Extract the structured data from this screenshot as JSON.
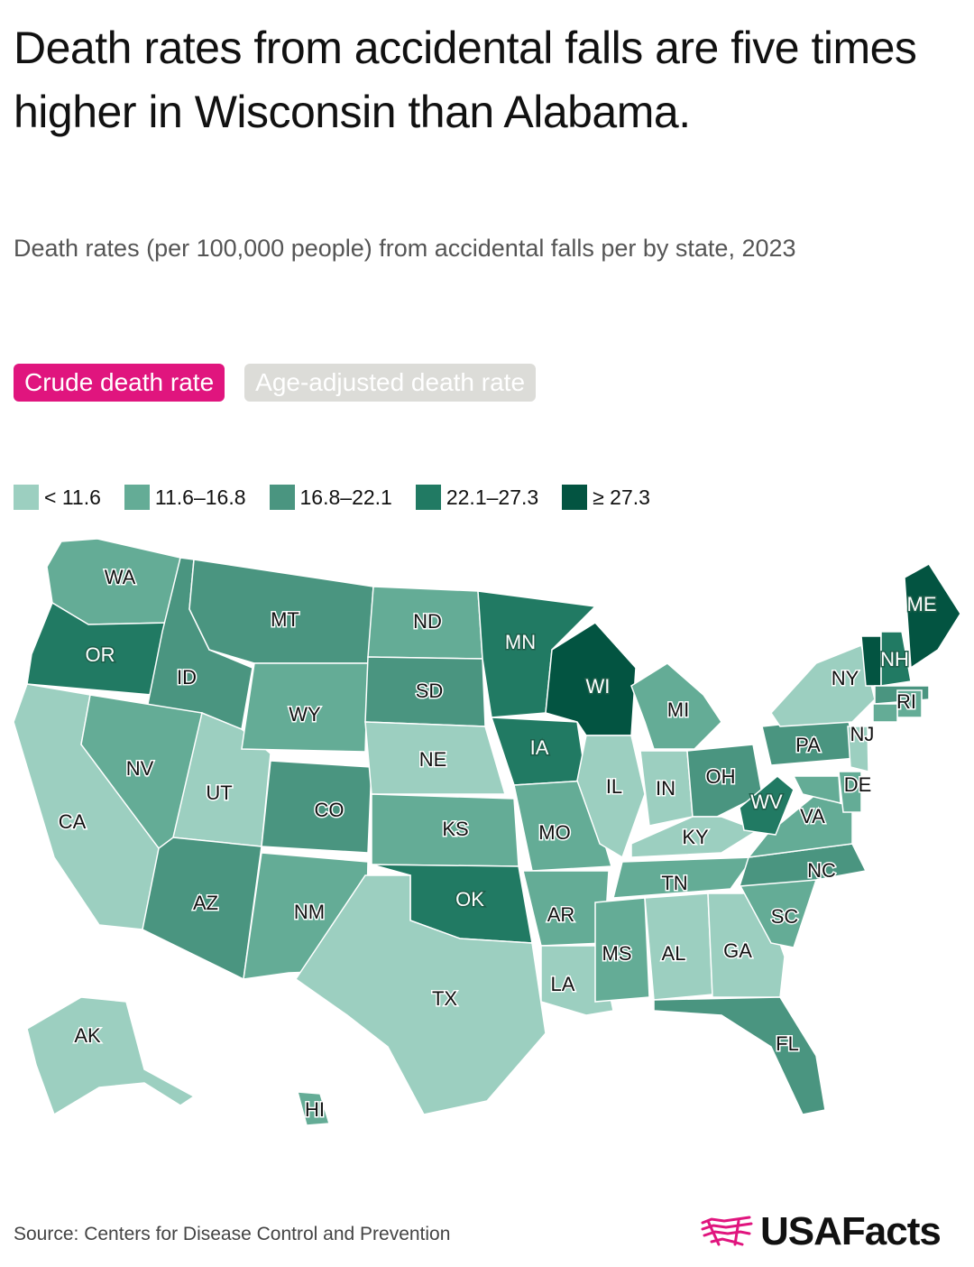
{
  "title": "Death rates from accidental falls are five times higher in Wisconsin than Alabama.",
  "subtitle": "Death rates (per 100,000 people) from accidental falls per by state, 2023",
  "tabs": [
    {
      "label": "Crude death rate",
      "active": true
    },
    {
      "label": "Age-adjusted death rate",
      "active": false
    }
  ],
  "legend": [
    {
      "label": "< 11.6",
      "color": "#9ccfc0"
    },
    {
      "label": "11.6–16.8",
      "color": "#64ac96"
    },
    {
      "label": "16.8–22.1",
      "color": "#4a9580"
    },
    {
      "label": "22.1–27.3",
      "color": "#217a63"
    },
    {
      "label": "≥ 27.3",
      "color": "#035441"
    }
  ],
  "chart_data": {
    "type": "choropleth",
    "bins": [
      "< 11.6",
      "11.6–16.8",
      "16.8–22.1",
      "22.1–27.3",
      "≥ 27.3"
    ],
    "states": [
      {
        "abbr": "WA",
        "bin": 1
      },
      {
        "abbr": "OR",
        "bin": 3
      },
      {
        "abbr": "CA",
        "bin": 0
      },
      {
        "abbr": "ID",
        "bin": 2
      },
      {
        "abbr": "NV",
        "bin": 1
      },
      {
        "abbr": "UT",
        "bin": 0
      },
      {
        "abbr": "AZ",
        "bin": 2
      },
      {
        "abbr": "MT",
        "bin": 2
      },
      {
        "abbr": "WY",
        "bin": 1
      },
      {
        "abbr": "CO",
        "bin": 2
      },
      {
        "abbr": "NM",
        "bin": 1
      },
      {
        "abbr": "ND",
        "bin": 1
      },
      {
        "abbr": "SD",
        "bin": 2
      },
      {
        "abbr": "NE",
        "bin": 0
      },
      {
        "abbr": "KS",
        "bin": 1
      },
      {
        "abbr": "OK",
        "bin": 3
      },
      {
        "abbr": "TX",
        "bin": 0
      },
      {
        "abbr": "MN",
        "bin": 3
      },
      {
        "abbr": "IA",
        "bin": 3
      },
      {
        "abbr": "MO",
        "bin": 1
      },
      {
        "abbr": "AR",
        "bin": 1
      },
      {
        "abbr": "LA",
        "bin": 0
      },
      {
        "abbr": "WI",
        "bin": 4
      },
      {
        "abbr": "IL",
        "bin": 0
      },
      {
        "abbr": "MI",
        "bin": 1
      },
      {
        "abbr": "IN",
        "bin": 0
      },
      {
        "abbr": "OH",
        "bin": 2
      },
      {
        "abbr": "KY",
        "bin": 0
      },
      {
        "abbr": "TN",
        "bin": 1
      },
      {
        "abbr": "MS",
        "bin": 1
      },
      {
        "abbr": "AL",
        "bin": 0
      },
      {
        "abbr": "GA",
        "bin": 0
      },
      {
        "abbr": "FL",
        "bin": 2
      },
      {
        "abbr": "SC",
        "bin": 1
      },
      {
        "abbr": "NC",
        "bin": 2
      },
      {
        "abbr": "VA",
        "bin": 1
      },
      {
        "abbr": "WV",
        "bin": 3
      },
      {
        "abbr": "PA",
        "bin": 2
      },
      {
        "abbr": "NY",
        "bin": 0
      },
      {
        "abbr": "NJ",
        "bin": 0
      },
      {
        "abbr": "DE",
        "bin": 1
      },
      {
        "abbr": "MD",
        "bin": 1
      },
      {
        "abbr": "VT",
        "bin": 4
      },
      {
        "abbr": "NH",
        "bin": 3
      },
      {
        "abbr": "ME",
        "bin": 4
      },
      {
        "abbr": "MA",
        "bin": 2
      },
      {
        "abbr": "RI",
        "bin": 1
      },
      {
        "abbr": "CT",
        "bin": 1
      },
      {
        "abbr": "AK",
        "bin": 0
      },
      {
        "abbr": "HI",
        "bin": 1
      }
    ]
  },
  "source": "Source: Centers for Disease Control and Prevention",
  "logo": {
    "text": "USAFacts",
    "icon": "usafacts-flag-icon",
    "color": "#e0157e"
  }
}
